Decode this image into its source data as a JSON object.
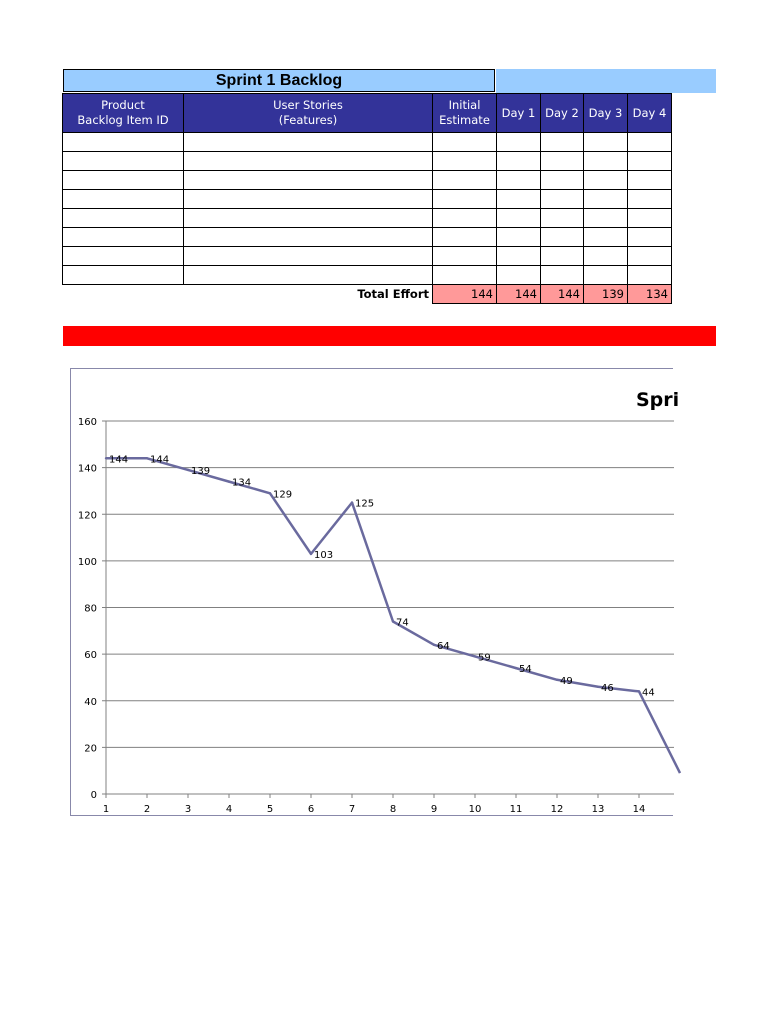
{
  "backlog": {
    "title": "Sprint 1 Backlog",
    "headers": [
      "Product\nBacklog Item ID",
      "User Stories\n(Features)",
      "Initial\nEstimate",
      "Day 1",
      "Day 2",
      "Day 3",
      "Day 4"
    ],
    "total_label": "Total Effort",
    "totals": [
      "144",
      "144",
      "144",
      "139",
      "134"
    ],
    "colors": {
      "title_bg": "#99ccff",
      "header_bg": "#333399",
      "total_bg": "#ff9999",
      "banner": "#ff0000"
    }
  },
  "chart_data": {
    "type": "line",
    "title": "Spri",
    "x": [
      1,
      2,
      3,
      4,
      5,
      6,
      7,
      8,
      9,
      10,
      11,
      12,
      13,
      14,
      15
    ],
    "series": [
      {
        "values": [
          144,
          144,
          139,
          134,
          129,
          103,
          125,
          74,
          64,
          59,
          54,
          49,
          46,
          44,
          9
        ],
        "color": "#6a6a9e"
      }
    ],
    "data_labels": [
      "144",
      "144",
      "139",
      "134",
      "129",
      "103",
      "125",
      "74",
      "64",
      "59",
      "54",
      "49",
      "46",
      "44"
    ],
    "x_tick_labels": [
      "1",
      "2",
      "3",
      "4",
      "5",
      "6",
      "7",
      "8",
      "9",
      "10",
      "11",
      "12",
      "13",
      "14"
    ],
    "y_tick_labels": [
      "0",
      "20",
      "40",
      "60",
      "80",
      "100",
      "120",
      "140",
      "160"
    ],
    "ylim": [
      0,
      160
    ],
    "grid": true
  }
}
